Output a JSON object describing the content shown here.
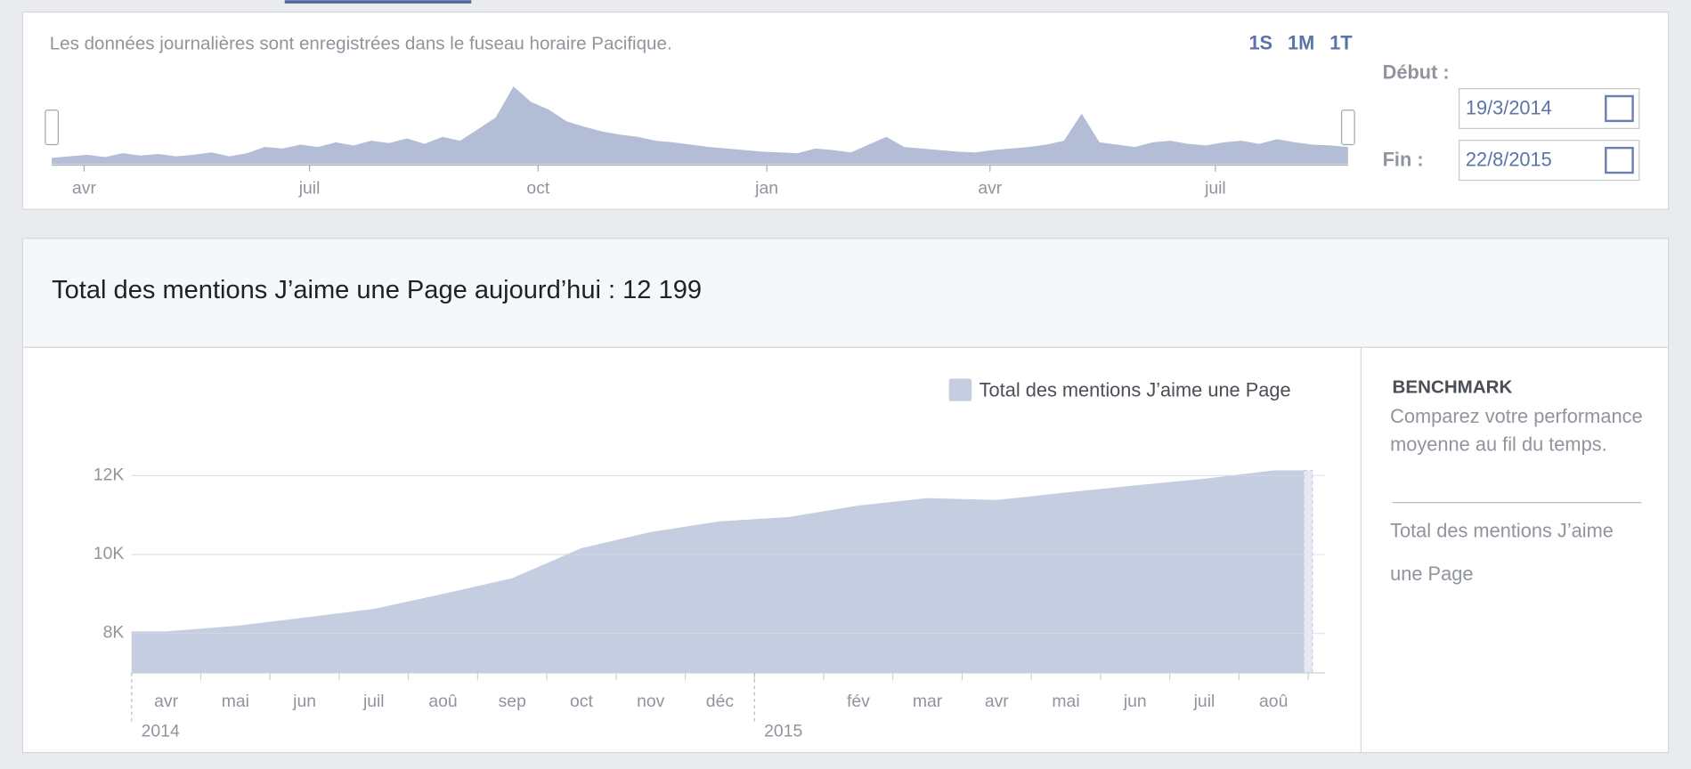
{
  "timeline": {
    "note": "Les données journalières sont enregistrées dans le fuseau horaire Pacifique.",
    "ranges": [
      "1S",
      "1M",
      "1T"
    ],
    "start_label": "Début :",
    "start": "19/3/2014",
    "end_label": "Fin :",
    "end": "22/8/2015"
  },
  "chart_data": [
    {
      "type": "area",
      "x_labels": [
        "avr",
        "juil",
        "oct",
        "jan",
        "avr",
        "juil"
      ],
      "ylim": [
        0,
        100
      ],
      "color": "#b4bdd6",
      "values": [
        8,
        10,
        12,
        9,
        14,
        11,
        13,
        10,
        12,
        15,
        10,
        14,
        22,
        20,
        25,
        22,
        28,
        24,
        30,
        27,
        33,
        26,
        35,
        30,
        45,
        60,
        100,
        80,
        70,
        55,
        48,
        42,
        38,
        35,
        30,
        28,
        25,
        22,
        20,
        18,
        16,
        15,
        14,
        20,
        18,
        15,
        25,
        35,
        22,
        20,
        18,
        16,
        15,
        18,
        20,
        22,
        25,
        30,
        65,
        28,
        25,
        22,
        28,
        30,
        26,
        24,
        28,
        30,
        26,
        32,
        28,
        25,
        24,
        22
      ]
    },
    {
      "type": "area",
      "title": "Total des mentions J’aime une Page aujourd’hui : 12 199",
      "categories": [
        "avr",
        "mai",
        "jun",
        "juil",
        "aoû",
        "sep",
        "oct",
        "nov",
        "déc",
        null,
        "fév",
        "mar",
        "avr",
        "mai",
        "jun",
        "juil",
        "aoû"
      ],
      "years": [
        "2014",
        "2015"
      ],
      "series": [
        {
          "name": "Total des mentions J’aime une Page",
          "color": "#c5cde0",
          "values": [
            8050,
            8190,
            8400,
            8620,
            9000,
            9400,
            10160,
            10570,
            10840,
            10950,
            11240,
            11430,
            11380,
            11570,
            11750,
            11920,
            12130
          ]
        }
      ],
      "ylim": [
        7000,
        12300
      ],
      "yticks": [
        {
          "value": 8000,
          "label": "8K"
        },
        {
          "value": 10000,
          "label": "10K"
        },
        {
          "value": 12000,
          "label": "12K"
        }
      ],
      "grid": true
    }
  ],
  "benchmark": {
    "title": "BENCHMARK",
    "text": "Comparez votre performance moyenne au fil du temps.",
    "metric": "Total des mentions J’aime une Page"
  }
}
